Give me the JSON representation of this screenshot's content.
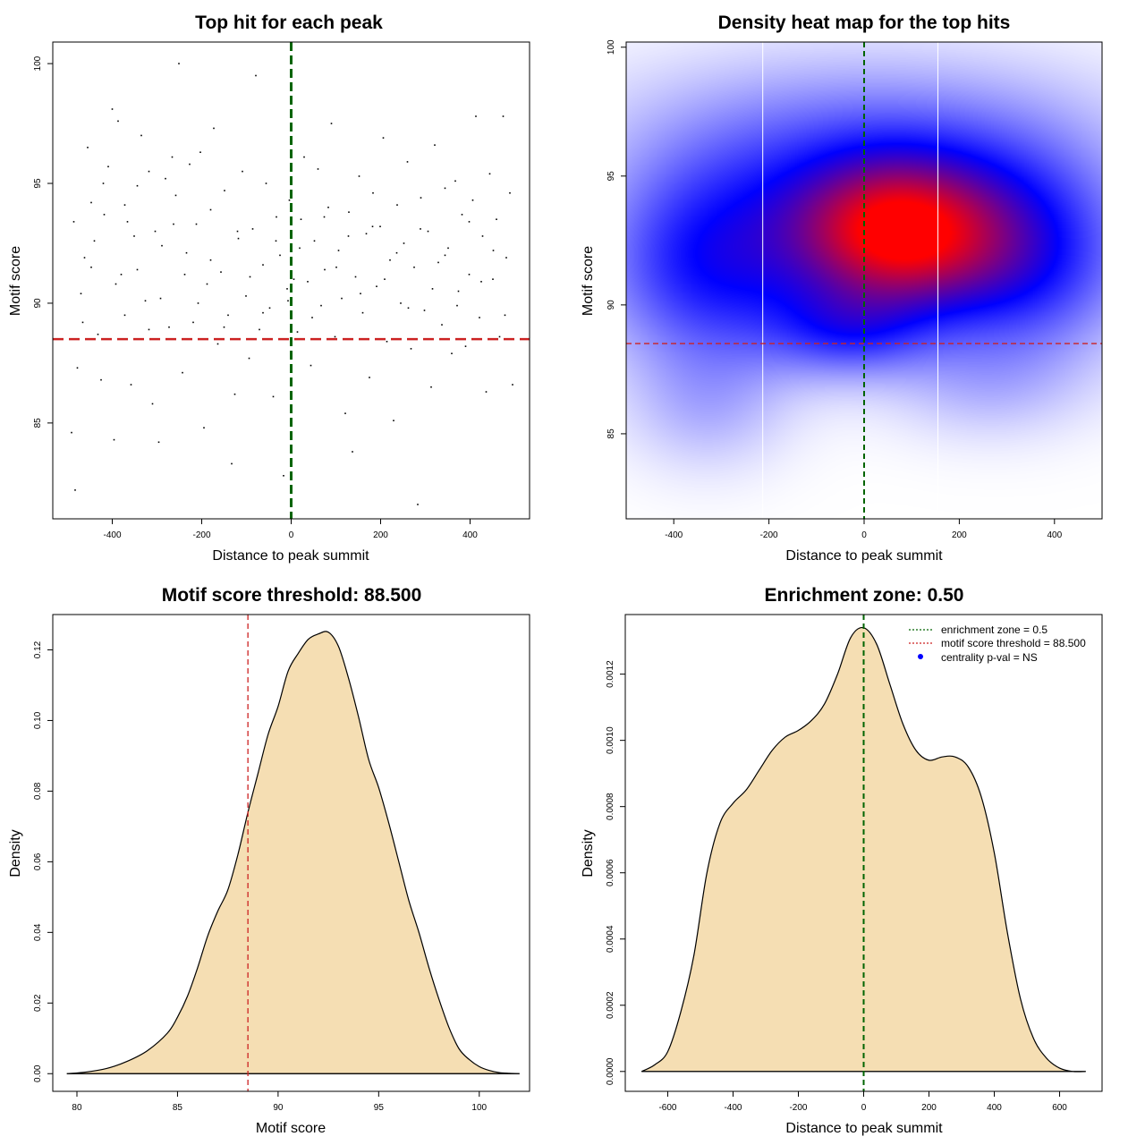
{
  "colors": {
    "scatter_point": "#000000",
    "threshold_line": "#cc2222",
    "zero_line": "#006400",
    "density_fill": "#f5deb3",
    "heat_low": "#ffffff",
    "heat_mid": "#0000ff",
    "heat_high": "#ff0000",
    "legend_point": "#0000ff"
  },
  "chart_data": [
    {
      "type": "scatter",
      "title": "Top hit for each peak",
      "xlabel": "Distance to peak summit",
      "ylabel": "Motif score",
      "xlim": [
        -533,
        533
      ],
      "ylim": [
        81.0,
        100.9
      ],
      "xticks": [
        -400,
        -200,
        0,
        200,
        400
      ],
      "yticks": [
        85,
        90,
        95,
        100
      ],
      "xtick_labels": [
        "-400",
        "-200",
        "0",
        "200",
        "400"
      ],
      "ytick_labels": [
        "85",
        "90",
        "95",
        "100"
      ],
      "hline": 88.5,
      "vline": 0,
      "points": [
        [
          -491,
          84.6
        ],
        [
          -483,
          82.2
        ],
        [
          -478,
          87.3
        ],
        [
          -470,
          90.4
        ],
        [
          -462,
          91.9
        ],
        [
          -455,
          96.5
        ],
        [
          -447,
          94.2
        ],
        [
          -440,
          92.6
        ],
        [
          -432,
          88.7
        ],
        [
          -425,
          86.8
        ],
        [
          -418,
          93.7
        ],
        [
          -409,
          95.7
        ],
        [
          -400,
          98.1
        ],
        [
          -396,
          84.3
        ],
        [
          -387,
          97.6
        ],
        [
          -380,
          91.2
        ],
        [
          -372,
          89.5
        ],
        [
          -366,
          93.4
        ],
        [
          -358,
          86.6
        ],
        [
          -351,
          92.8
        ],
        [
          -344,
          94.9
        ],
        [
          -335,
          97.0
        ],
        [
          -326,
          90.1
        ],
        [
          -318,
          88.9
        ],
        [
          -310,
          85.8
        ],
        [
          -304,
          93.0
        ],
        [
          -296,
          84.2
        ],
        [
          -289,
          92.4
        ],
        [
          -281,
          95.2
        ],
        [
          -273,
          89.0
        ],
        [
          -266,
          96.1
        ],
        [
          -258,
          94.5
        ],
        [
          -251,
          100.0
        ],
        [
          -243,
          87.1
        ],
        [
          -234,
          92.1
        ],
        [
          -227,
          95.8
        ],
        [
          -219,
          89.2
        ],
        [
          -212,
          93.3
        ],
        [
          -203,
          96.3
        ],
        [
          -195,
          84.8
        ],
        [
          -188,
          90.8
        ],
        [
          -180,
          93.9
        ],
        [
          -173,
          97.3
        ],
        [
          -164,
          88.3
        ],
        [
          -157,
          91.3
        ],
        [
          -149,
          94.7
        ],
        [
          -141,
          89.5
        ],
        [
          -133,
          83.3
        ],
        [
          -126,
          86.2
        ],
        [
          -118,
          92.7
        ],
        [
          -109,
          95.5
        ],
        [
          -101,
          90.3
        ],
        [
          -94,
          87.7
        ],
        [
          -86,
          93.1
        ],
        [
          -79,
          99.5
        ],
        [
          -71,
          88.9
        ],
        [
          -63,
          91.6
        ],
        [
          -56,
          95.0
        ],
        [
          -48,
          89.8
        ],
        [
          -40,
          86.1
        ],
        [
          -33,
          93.6
        ],
        [
          -25,
          92.0
        ],
        [
          -17,
          82.8
        ],
        [
          -9,
          90.6
        ],
        [
          -4,
          94.3
        ],
        [
          6,
          91.0
        ],
        [
          14,
          88.8
        ],
        [
          22,
          93.5
        ],
        [
          29,
          96.1
        ],
        [
          37,
          90.9
        ],
        [
          44,
          87.4
        ],
        [
          52,
          92.6
        ],
        [
          60,
          95.6
        ],
        [
          67,
          89.9
        ],
        [
          75,
          91.4
        ],
        [
          83,
          94.0
        ],
        [
          90,
          97.5
        ],
        [
          98,
          88.6
        ],
        [
          106,
          92.2
        ],
        [
          113,
          90.2
        ],
        [
          121,
          85.4
        ],
        [
          129,
          93.8
        ],
        [
          137,
          83.8
        ],
        [
          144,
          91.1
        ],
        [
          152,
          95.3
        ],
        [
          160,
          89.6
        ],
        [
          168,
          92.9
        ],
        [
          175,
          86.9
        ],
        [
          183,
          94.6
        ],
        [
          191,
          90.7
        ],
        [
          199,
          93.2
        ],
        [
          206,
          96.9
        ],
        [
          214,
          88.4
        ],
        [
          221,
          91.8
        ],
        [
          229,
          85.1
        ],
        [
          237,
          94.1
        ],
        [
          245,
          90.0
        ],
        [
          252,
          92.5
        ],
        [
          260,
          95.9
        ],
        [
          268,
          88.1
        ],
        [
          275,
          91.5
        ],
        [
          283,
          81.6
        ],
        [
          290,
          94.4
        ],
        [
          298,
          89.7
        ],
        [
          306,
          93.0
        ],
        [
          313,
          86.5
        ],
        [
          321,
          96.6
        ],
        [
          329,
          91.7
        ],
        [
          337,
          89.1
        ],
        [
          344,
          94.8
        ],
        [
          351,
          92.3
        ],
        [
          359,
          87.9
        ],
        [
          367,
          95.1
        ],
        [
          374,
          90.5
        ],
        [
          382,
          93.7
        ],
        [
          390,
          88.2
        ],
        [
          398,
          91.2
        ],
        [
          406,
          94.3
        ],
        [
          413,
          97.8
        ],
        [
          421,
          89.4
        ],
        [
          428,
          92.8
        ],
        [
          436,
          86.3
        ],
        [
          444,
          95.4
        ],
        [
          451,
          91.0
        ],
        [
          459,
          93.5
        ],
        [
          466,
          88.6
        ],
        [
          474,
          97.8
        ],
        [
          481,
          91.9
        ],
        [
          489,
          94.6
        ],
        [
          495,
          86.6
        ],
        [
          -486,
          93.4
        ],
        [
          -466,
          89.2
        ],
        [
          -447,
          91.5
        ],
        [
          -420,
          95.0
        ],
        [
          -392,
          90.8
        ],
        [
          -372,
          94.1
        ],
        [
          -344,
          91.4
        ],
        [
          -318,
          95.5
        ],
        [
          -292,
          90.2
        ],
        [
          -263,
          93.3
        ],
        [
          -238,
          91.2
        ],
        [
          -208,
          90.0
        ],
        [
          -180,
          91.8
        ],
        [
          -150,
          89.0
        ],
        [
          -120,
          93.0
        ],
        [
          -92,
          91.1
        ],
        [
          -63,
          89.6
        ],
        [
          -34,
          92.6
        ],
        [
          -7,
          90.1
        ],
        [
          19,
          92.3
        ],
        [
          47,
          89.4
        ],
        [
          74,
          93.6
        ],
        [
          101,
          91.5
        ],
        [
          128,
          92.8
        ],
        [
          155,
          90.4
        ],
        [
          182,
          93.2
        ],
        [
          209,
          91.0
        ],
        [
          236,
          92.1
        ],
        [
          262,
          89.8
        ],
        [
          289,
          93.1
        ],
        [
          316,
          90.6
        ],
        [
          344,
          92.0
        ],
        [
          371,
          89.9
        ],
        [
          398,
          93.4
        ],
        [
          425,
          90.9
        ],
        [
          452,
          92.2
        ],
        [
          478,
          89.5
        ]
      ]
    },
    {
      "type": "heatmap",
      "title": "Density heat map for the top hits",
      "xlabel": "Distance to peak summit",
      "ylabel": "Motif score",
      "xlim": [
        -500,
        500
      ],
      "ylim": [
        81.7,
        100.2
      ],
      "xticks": [
        -400,
        -200,
        0,
        200,
        400
      ],
      "yticks": [
        85,
        90,
        95,
        100
      ],
      "xtick_labels": [
        "-400",
        "-200",
        "0",
        "200",
        "400"
      ],
      "ytick_labels": [
        "85",
        "90",
        "95",
        "100"
      ],
      "hline": 88.5,
      "vline": 0,
      "vlines_white": [
        -213,
        155
      ],
      "kernels": [
        {
          "x": 60,
          "y": 92.7,
          "sx": 150,
          "sy": 2.0,
          "w": 1.0
        },
        {
          "x": -320,
          "y": 91.5,
          "sx": 170,
          "sy": 2.7,
          "w": 0.55
        },
        {
          "x": 330,
          "y": 91.8,
          "sx": 170,
          "sy": 2.7,
          "w": 0.55
        },
        {
          "x": -30,
          "y": 89.0,
          "sx": 120,
          "sy": 1.3,
          "w": 0.35
        },
        {
          "x": 0,
          "y": 95.5,
          "sx": 330,
          "sy": 2.2,
          "w": 0.3
        },
        {
          "x": -330,
          "y": 86.0,
          "sx": 120,
          "sy": 1.8,
          "w": 0.15
        },
        {
          "x": 250,
          "y": 86.8,
          "sx": 150,
          "sy": 1.5,
          "w": 0.12
        },
        {
          "x": 0,
          "y": 98.0,
          "sx": 400,
          "sy": 2.0,
          "w": 0.1
        }
      ]
    },
    {
      "type": "area",
      "title": "Motif score threshold: 88.500",
      "xlabel": "Motif score",
      "ylabel": "Density",
      "xlim": [
        78.8,
        102.5
      ],
      "ylim": [
        -0.005,
        0.13
      ],
      "xticks": [
        80,
        85,
        90,
        95,
        100
      ],
      "yticks": [
        0.0,
        0.02,
        0.04,
        0.06,
        0.08,
        0.1,
        0.12
      ],
      "xtick_labels": [
        "80",
        "85",
        "90",
        "95",
        "100"
      ],
      "ytick_labels": [
        "0.00",
        "0.02",
        "0.04",
        "0.06",
        "0.08",
        "0.10",
        "0.12"
      ],
      "vline": 88.5,
      "x": [
        79.5,
        80.5,
        81.5,
        82.5,
        83.5,
        84.5,
        85.0,
        85.5,
        86.0,
        86.5,
        87.0,
        87.5,
        88.0,
        88.5,
        89.0,
        89.5,
        90.0,
        90.5,
        91.0,
        91.5,
        92.0,
        92.5,
        93.0,
        93.5,
        94.0,
        94.5,
        95.0,
        95.5,
        96.0,
        96.5,
        97.0,
        97.5,
        98.0,
        98.5,
        99.0,
        99.5,
        100.0,
        100.5,
        101.0,
        101.5,
        102.0
      ],
      "y": [
        0.0,
        0.0005,
        0.0015,
        0.0035,
        0.0065,
        0.0115,
        0.016,
        0.022,
        0.03,
        0.039,
        0.046,
        0.052,
        0.062,
        0.074,
        0.085,
        0.096,
        0.104,
        0.114,
        0.119,
        0.123,
        0.1245,
        0.125,
        0.121,
        0.112,
        0.101,
        0.089,
        0.081,
        0.071,
        0.06,
        0.049,
        0.04,
        0.03,
        0.021,
        0.013,
        0.007,
        0.004,
        0.002,
        0.0009,
        0.0003,
        0.0001,
        0.0
      ]
    },
    {
      "type": "area",
      "title": "Enrichment zone: 0.50",
      "xlabel": "Distance to peak summit",
      "ylabel": "Density",
      "xlim": [
        -730,
        730
      ],
      "ylim": [
        -6e-05,
        0.00138
      ],
      "xticks": [
        -600,
        -400,
        -200,
        0,
        200,
        400,
        600
      ],
      "yticks": [
        0.0,
        0.0002,
        0.0004,
        0.0006,
        0.0008,
        0.001,
        0.0012
      ],
      "xtick_labels": [
        "-600",
        "-400",
        "-200",
        "0",
        "200",
        "400",
        "600"
      ],
      "ytick_labels": [
        "0.0000",
        "0.0002",
        "0.0004",
        "0.0006",
        "0.0008",
        "0.0010",
        "0.0012"
      ],
      "vline": 0,
      "x": [
        -680,
        -640,
        -600,
        -560,
        -520,
        -480,
        -440,
        -400,
        -360,
        -320,
        -280,
        -240,
        -200,
        -160,
        -120,
        -80,
        -40,
        0,
        40,
        80,
        120,
        160,
        200,
        240,
        280,
        320,
        360,
        400,
        440,
        480,
        520,
        560,
        600,
        640,
        680
      ],
      "y": [
        0.0,
        2e-05,
        6e-05,
        0.00018,
        0.00035,
        0.0006,
        0.00075,
        0.00081,
        0.00085,
        0.00091,
        0.00097,
        0.00101,
        0.00103,
        0.00106,
        0.00111,
        0.0012,
        0.00131,
        0.00134,
        0.00129,
        0.00117,
        0.00105,
        0.00097,
        0.00094,
        0.00095,
        0.00095,
        0.00092,
        0.00083,
        0.00066,
        0.00042,
        0.00022,
        0.0001,
        4e-05,
        1e-05,
        0.0,
        0.0
      ],
      "legend": {
        "position": "top-right",
        "entries": [
          {
            "label": "enrichment zone = 0.5",
            "style": "dotted-line",
            "color": "#006400"
          },
          {
            "label": "motif score threshold = 88.500",
            "style": "dotted-line",
            "color": "#cc2222"
          },
          {
            "label": "centrality p-val = NS",
            "style": "point",
            "color": "#0000ff"
          }
        ]
      }
    }
  ]
}
